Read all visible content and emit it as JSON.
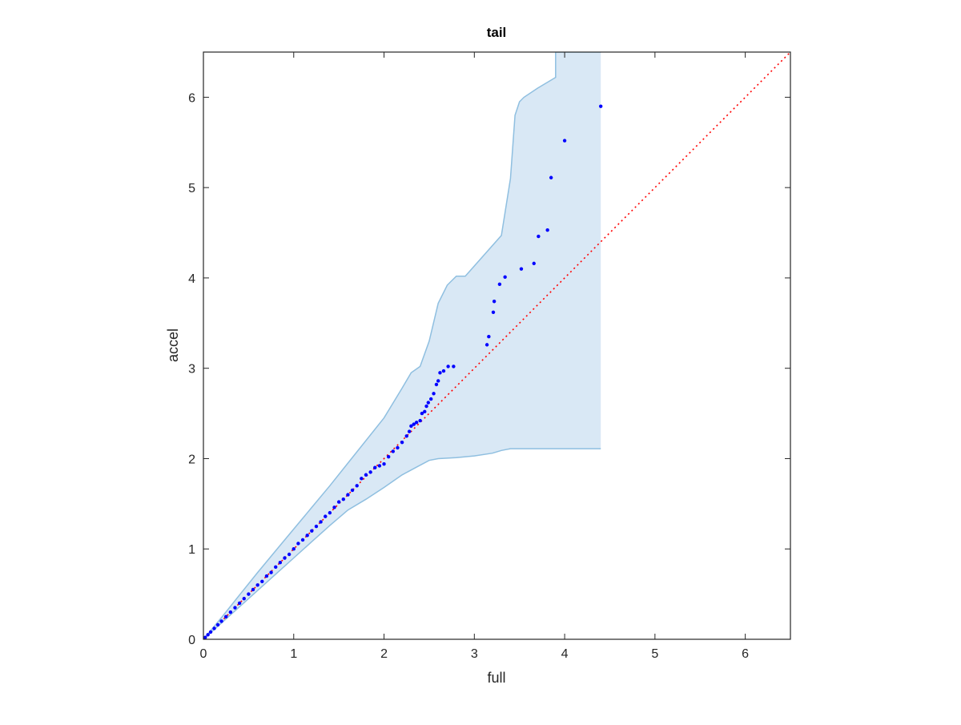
{
  "chart_data": {
    "type": "scatter",
    "title": "tail",
    "xlabel": "full",
    "ylabel": "accel",
    "xlim": [
      0,
      6.5
    ],
    "ylim": [
      0,
      6.5
    ],
    "xticks": [
      "0",
      "1",
      "2",
      "3",
      "4",
      "5",
      "6"
    ],
    "yticks": [
      "0",
      "1",
      "2",
      "3",
      "4",
      "5",
      "6"
    ],
    "grid": false,
    "colors": {
      "points": "#0000ff",
      "reference": "#ff0000",
      "band_fill": "#d9e8f5",
      "band_edge": "#8fbfe0",
      "axes": "#262626"
    },
    "reference_line": {
      "style": "dotted",
      "x": [
        0,
        6.5
      ],
      "y": [
        0,
        6.5
      ]
    },
    "band": {
      "upper": [
        [
          0,
          0
        ],
        [
          0.2,
          0.24
        ],
        [
          0.4,
          0.49
        ],
        [
          0.6,
          0.74
        ],
        [
          0.8,
          0.98
        ],
        [
          1.0,
          1.22
        ],
        [
          1.2,
          1.46
        ],
        [
          1.4,
          1.7
        ],
        [
          1.6,
          1.95
        ],
        [
          1.8,
          2.2
        ],
        [
          2.0,
          2.45
        ],
        [
          2.2,
          2.78
        ],
        [
          2.3,
          2.95
        ],
        [
          2.4,
          3.02
        ],
        [
          2.5,
          3.3
        ],
        [
          2.6,
          3.72
        ],
        [
          2.7,
          3.92
        ],
        [
          2.8,
          4.02
        ],
        [
          2.9,
          4.02
        ],
        [
          3.3,
          4.47
        ],
        [
          3.4,
          5.1
        ],
        [
          3.45,
          5.8
        ],
        [
          3.5,
          5.95
        ],
        [
          3.55,
          6.0
        ],
        [
          3.7,
          6.1
        ],
        [
          3.9,
          6.22
        ],
        [
          3.9,
          6.5
        ],
        [
          4.4,
          6.5
        ]
      ],
      "lower": [
        [
          0,
          0
        ],
        [
          0.2,
          0.18
        ],
        [
          0.4,
          0.36
        ],
        [
          0.6,
          0.54
        ],
        [
          0.8,
          0.72
        ],
        [
          1.0,
          0.9
        ],
        [
          1.2,
          1.08
        ],
        [
          1.4,
          1.26
        ],
        [
          1.6,
          1.43
        ],
        [
          1.8,
          1.55
        ],
        [
          2.0,
          1.68
        ],
        [
          2.2,
          1.82
        ],
        [
          2.35,
          1.9
        ],
        [
          2.5,
          1.98
        ],
        [
          2.6,
          2.0
        ],
        [
          2.8,
          2.01
        ],
        [
          3.0,
          2.03
        ],
        [
          3.2,
          2.06
        ],
        [
          3.3,
          2.09
        ],
        [
          3.4,
          2.11
        ],
        [
          4.4,
          2.11
        ]
      ]
    },
    "series": [
      {
        "x": [
          0.02,
          0.05,
          0.08,
          0.12,
          0.16,
          0.2,
          0.25,
          0.3,
          0.35,
          0.4,
          0.45,
          0.5,
          0.55,
          0.6,
          0.65,
          0.7,
          0.75,
          0.8,
          0.85,
          0.9,
          0.95,
          1.0,
          1.05,
          1.1,
          1.15,
          1.2,
          1.25,
          1.3,
          1.35,
          1.4,
          1.45,
          1.5,
          1.55,
          1.6,
          1.65,
          1.7,
          1.75,
          1.8,
          1.85,
          1.9,
          1.95,
          2.0,
          2.05,
          2.1,
          2.15,
          2.2,
          2.25,
          2.28,
          2.3,
          2.33,
          2.36,
          2.4,
          2.42,
          2.45,
          2.47,
          2.49,
          2.52,
          2.55,
          2.58,
          2.6,
          2.62,
          2.66,
          2.71,
          2.77,
          3.14,
          3.16,
          3.21,
          3.22,
          3.28,
          3.34,
          3.52,
          3.66,
          3.71,
          3.81,
          3.85,
          4.0,
          4.4
        ],
        "y": [
          0.02,
          0.05,
          0.08,
          0.12,
          0.16,
          0.2,
          0.25,
          0.3,
          0.35,
          0.4,
          0.45,
          0.5,
          0.55,
          0.6,
          0.64,
          0.7,
          0.74,
          0.8,
          0.85,
          0.9,
          0.94,
          1.0,
          1.06,
          1.1,
          1.15,
          1.2,
          1.25,
          1.3,
          1.36,
          1.4,
          1.46,
          1.52,
          1.55,
          1.6,
          1.65,
          1.7,
          1.78,
          1.82,
          1.85,
          1.9,
          1.92,
          1.94,
          2.02,
          2.08,
          2.12,
          2.18,
          2.25,
          2.3,
          2.36,
          2.38,
          2.4,
          2.42,
          2.5,
          2.52,
          2.58,
          2.62,
          2.66,
          2.72,
          2.82,
          2.86,
          2.95,
          2.97,
          3.02,
          3.02,
          3.26,
          3.35,
          3.62,
          3.74,
          3.93,
          4.01,
          4.1,
          4.16,
          4.46,
          4.53,
          5.11,
          5.52,
          5.9
        ]
      }
    ]
  }
}
